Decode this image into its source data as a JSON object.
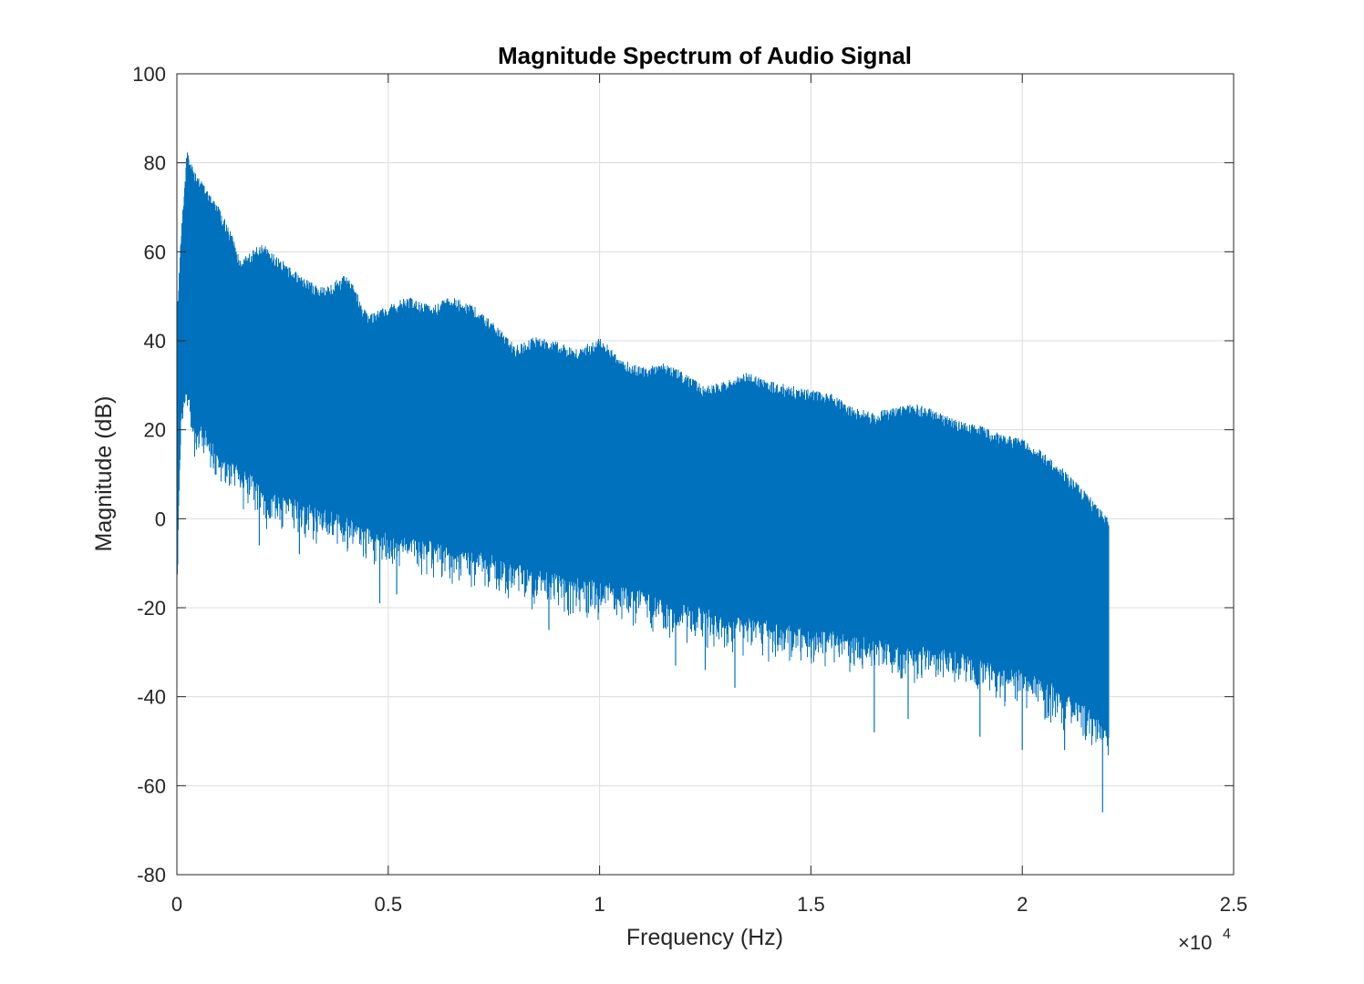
{
  "chart_data": {
    "type": "line",
    "title": "Magnitude Spectrum of Audio Signal",
    "xlabel": "Frequency (Hz)",
    "ylabel": "Magnitude (dB)",
    "xlim": [
      0,
      25000
    ],
    "ylim": [
      -80,
      100
    ],
    "x_ticks": [
      0,
      5000,
      10000,
      15000,
      20000,
      25000
    ],
    "x_tick_labels": [
      "0",
      "0.5",
      "1",
      "1.5",
      "2",
      "2.5"
    ],
    "x_exponent_label": "×10",
    "x_exponent_power": "4",
    "y_ticks": [
      -80,
      -60,
      -40,
      -20,
      0,
      20,
      40,
      60,
      80,
      100
    ],
    "y_tick_labels": [
      "-80",
      "-60",
      "-40",
      "-20",
      "0",
      "20",
      "40",
      "60",
      "80",
      "100"
    ],
    "grid": true,
    "series": [
      {
        "color": "#0072BD",
        "x_range": [
          0,
          22050
        ],
        "upper_envelope": {
          "x": [
            0,
            100,
            250,
            400,
            700,
            1000,
            1300,
            1500,
            2000,
            2500,
            3000,
            3500,
            4000,
            4200,
            4500,
            5000,
            5500,
            6000,
            6500,
            7000,
            7500,
            8000,
            8500,
            9000,
            9500,
            10000,
            10500,
            11000,
            11500,
            12000,
            12500,
            13000,
            13500,
            14000,
            14500,
            15000,
            15500,
            16000,
            16500,
            17000,
            17500,
            18000,
            18500,
            19000,
            19500,
            20000,
            20500,
            21000,
            21500,
            21800,
            22050
          ],
          "y": [
            45,
            65,
            84,
            78,
            75,
            70,
            64,
            58,
            62,
            58,
            54,
            52,
            55,
            52,
            46,
            48,
            50,
            48,
            50,
            48,
            44,
            39,
            41,
            40,
            38,
            41,
            36,
            34,
            35,
            33,
            30,
            31,
            33,
            31,
            30,
            29,
            28,
            25,
            24,
            25,
            26,
            24,
            22,
            21,
            19,
            18,
            15,
            11,
            6,
            3,
            1
          ]
        },
        "lower_envelope": {
          "x": [
            0,
            100,
            250,
            400,
            700,
            1000,
            1500,
            2000,
            2500,
            3000,
            3500,
            4000,
            4500,
            5000,
            5500,
            6000,
            6500,
            7000,
            7500,
            8000,
            8500,
            9000,
            9500,
            10000,
            10500,
            11000,
            11500,
            12000,
            12500,
            13000,
            13500,
            14000,
            14500,
            15000,
            15500,
            16000,
            16500,
            17000,
            17500,
            18000,
            18500,
            19000,
            19500,
            20000,
            20500,
            21000,
            21500,
            21800,
            22050
          ],
          "y": [
            -12,
            25,
            30,
            22,
            20,
            15,
            12,
            8,
            5,
            4,
            2,
            1,
            -2,
            -3,
            -4,
            -5,
            -6,
            -7,
            -8,
            -10,
            -11,
            -12,
            -13,
            -14,
            -15,
            -16,
            -18,
            -19,
            -20,
            -22,
            -22,
            -23,
            -24,
            -25,
            -25,
            -26,
            -27,
            -28,
            -28,
            -29,
            -30,
            -31,
            -33,
            -34,
            -36,
            -38,
            -42,
            -45,
            -48
          ]
        },
        "notable_dips": [
          {
            "x": 1950,
            "y": -6
          },
          {
            "x": 2900,
            "y": -8
          },
          {
            "x": 4800,
            "y": -19
          },
          {
            "x": 5200,
            "y": -17
          },
          {
            "x": 8800,
            "y": -25
          },
          {
            "x": 11800,
            "y": -33
          },
          {
            "x": 12500,
            "y": -34
          },
          {
            "x": 13200,
            "y": -38
          },
          {
            "x": 16500,
            "y": -48
          },
          {
            "x": 17300,
            "y": -45
          },
          {
            "x": 19000,
            "y": -49
          },
          {
            "x": 20000,
            "y": -52
          },
          {
            "x": 21000,
            "y": -52
          },
          {
            "x": 21900,
            "y": -66
          }
        ]
      }
    ]
  }
}
